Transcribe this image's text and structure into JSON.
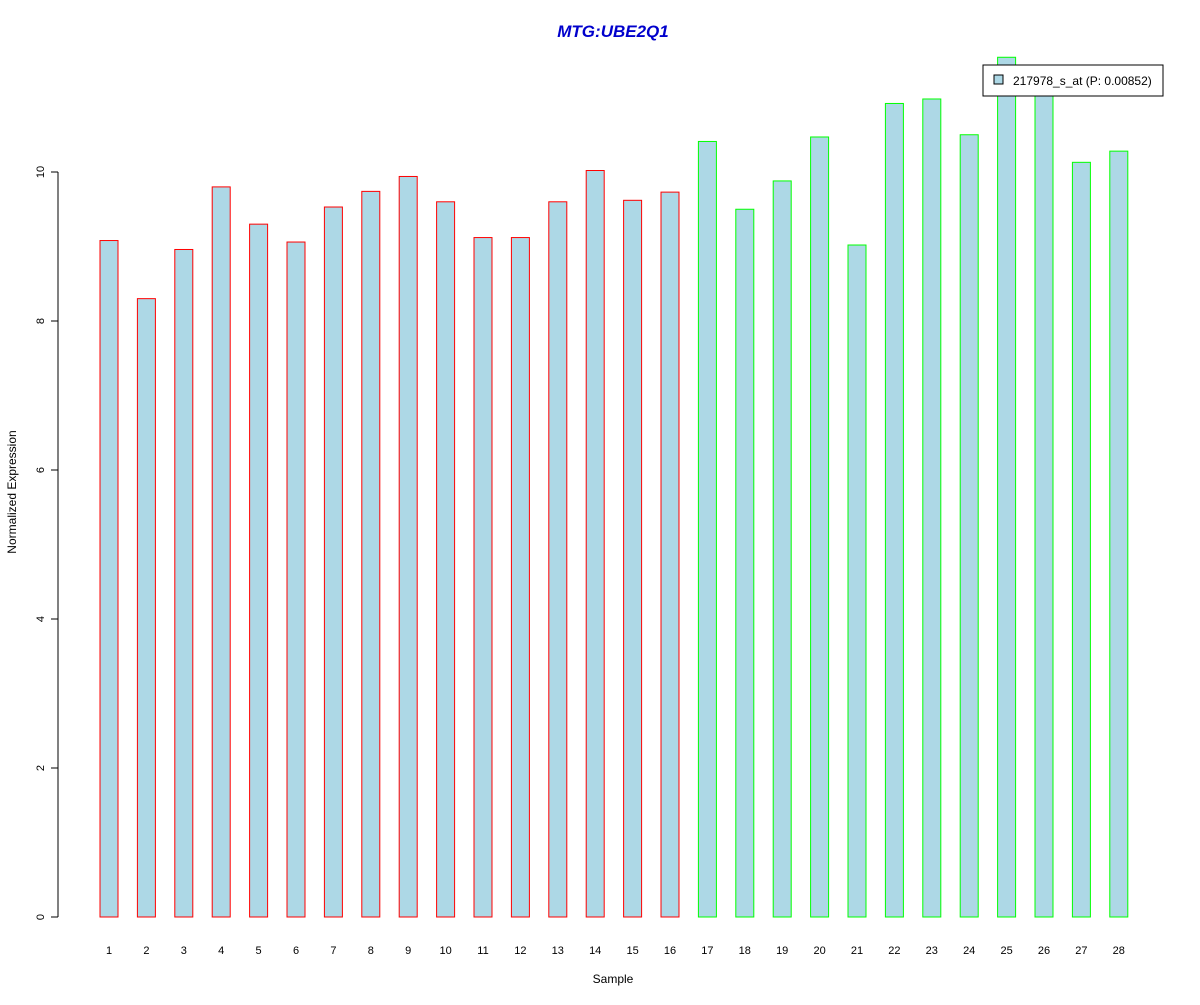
{
  "chart_data": {
    "type": "bar",
    "title": "MTG:UBE2Q1",
    "xlabel": "Sample",
    "ylabel": "Normalized Expression",
    "categories": [
      "1",
      "2",
      "3",
      "4",
      "5",
      "6",
      "7",
      "8",
      "9",
      "10",
      "11",
      "12",
      "13",
      "14",
      "15",
      "16",
      "17",
      "18",
      "19",
      "20",
      "21",
      "22",
      "23",
      "24",
      "25",
      "26",
      "27",
      "28"
    ],
    "series": [
      {
        "name": "217978_s_at (P: 0.00852)",
        "values": [
          9.08,
          8.3,
          8.96,
          9.8,
          9.3,
          9.06,
          9.53,
          9.74,
          9.94,
          9.6,
          9.12,
          9.12,
          9.6,
          10.02,
          9.62,
          9.73,
          10.41,
          9.5,
          9.88,
          10.47,
          9.02,
          10.92,
          10.98,
          10.5,
          11.54,
          11.1,
          10.13,
          10.28
        ],
        "fill": "#add8e6"
      }
    ],
    "groups": [
      {
        "samples": [
          1,
          16
        ],
        "border": "#ff0000"
      },
      {
        "samples": [
          17,
          28
        ],
        "border": "#00ff00"
      }
    ],
    "yticks": [
      0,
      2,
      4,
      6,
      8,
      10
    ],
    "ylim": [
      0,
      11.54
    ],
    "grid": false,
    "legend_position": "top-right",
    "title_color": "#0000cc"
  }
}
